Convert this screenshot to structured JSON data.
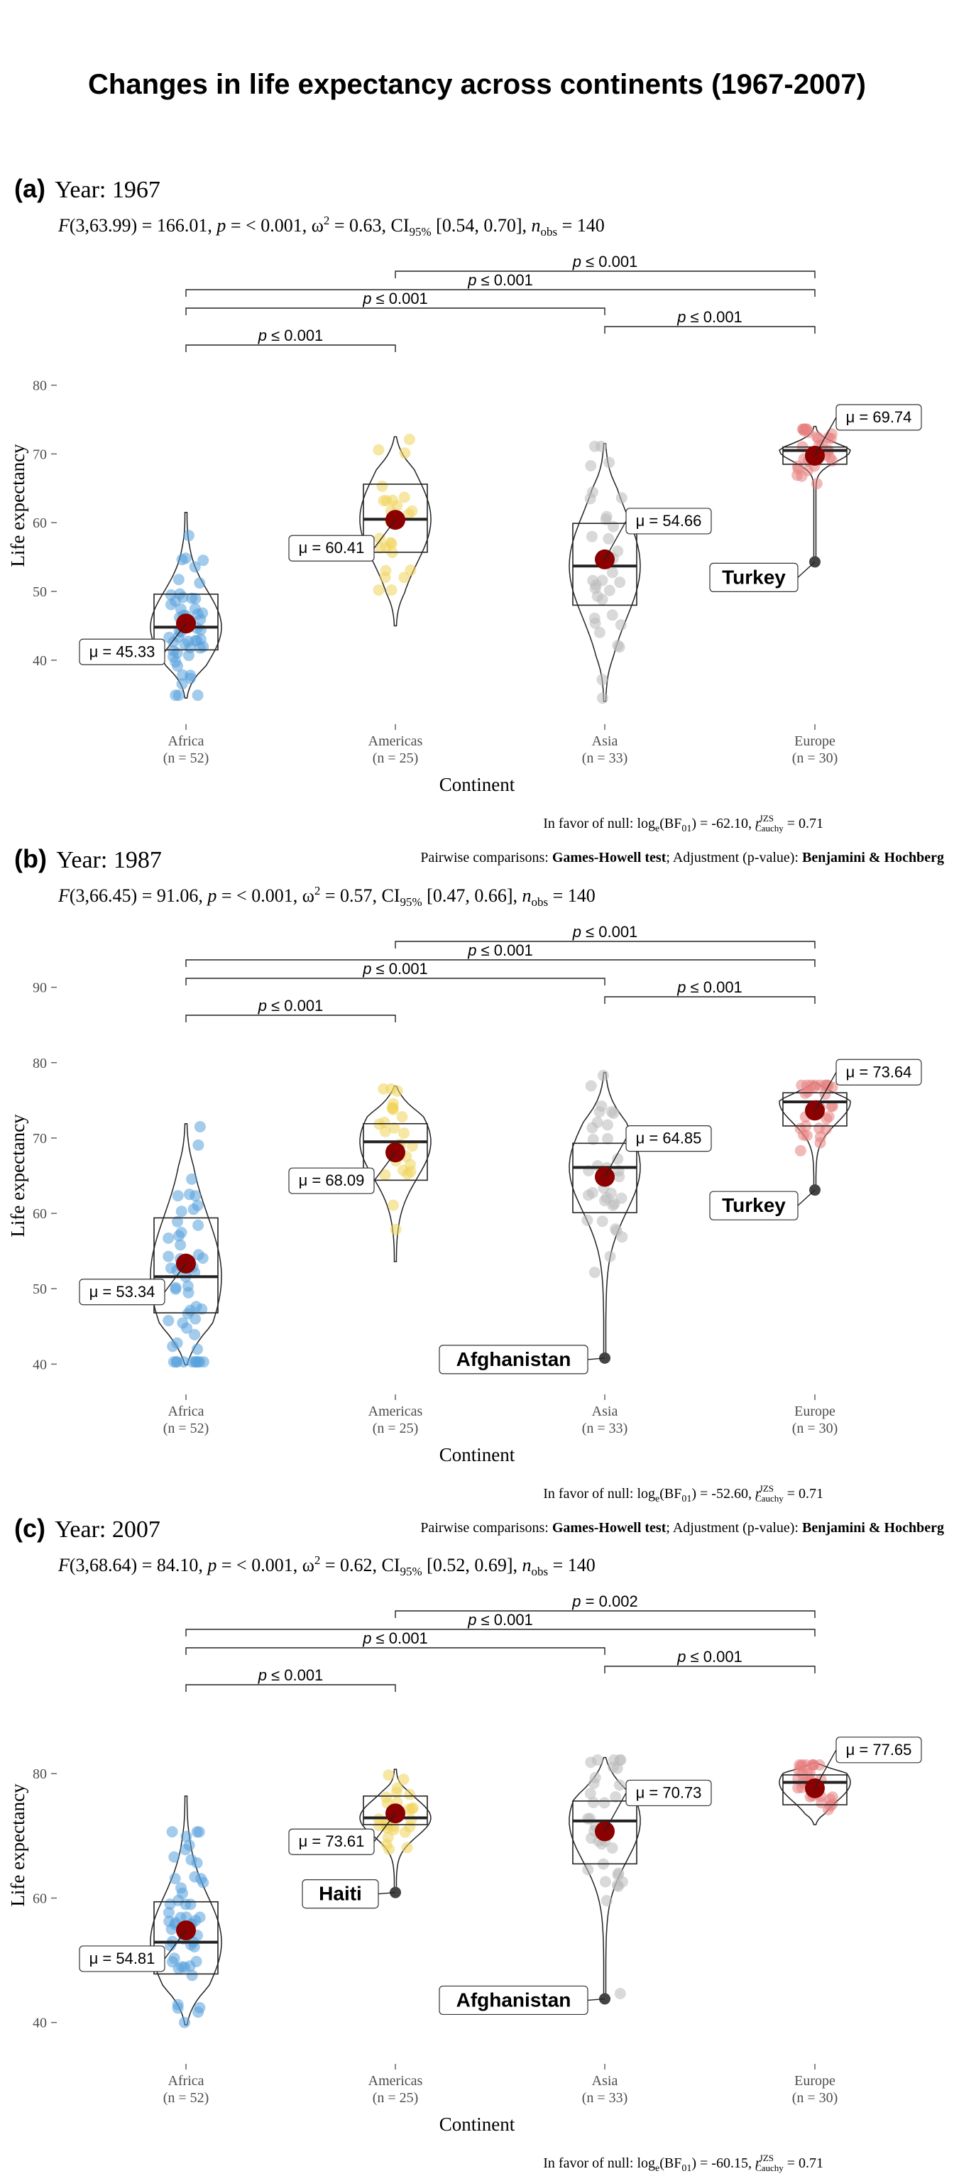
{
  "title": "Changes in life expectancy across continents (1967-2007)",
  "colors": {
    "Africa": "#56a0dc",
    "Americas": "#f0d35a",
    "Asia": "#b9b9b9",
    "Europe": "#e87f7f",
    "mean_dot": "#8b0000",
    "outlier_dot": "#444444"
  },
  "x_axis": {
    "label": "Continent"
  },
  "y_axis": {
    "label": "Life expectancy"
  },
  "pairwise_caption": {
    "prefix": "Pairwise comparisons: ",
    "test": "Games-Howell test",
    "middle": "; Adjustment (p-value): ",
    "adjust": "Benjamini & Hochberg"
  },
  "chart_data": [
    {
      "type": "violin-box-scatter",
      "tag": "(a)",
      "subtitle": "Year: 1967",
      "stats": {
        "F": "F(3,63.99) = 166.01",
        "p": "p = < 0.001",
        "omega": "0.63",
        "ci": "[0.54, 0.70]",
        "nobs": "140"
      },
      "bayes": {
        "text": "-62.10",
        "r": "0.71"
      },
      "ylim": [
        34,
        91
      ],
      "yticks": [
        40,
        50,
        60,
        70,
        80
      ],
      "categories": [
        "Africa",
        "Americas",
        "Asia",
        "Europe"
      ],
      "n": [
        "(n = 52)",
        "(n = 25)",
        "(n = 33)",
        "(n = 30)"
      ],
      "means": [
        45.33,
        60.41,
        54.66,
        69.74
      ],
      "mean_labels": [
        "μ = 45.33",
        "μ = 60.41",
        "μ = 54.66",
        "μ = 69.74"
      ],
      "boxes": [
        [
          41.5,
          44.8,
          49.6
        ],
        [
          55.7,
          60.5,
          65.6
        ],
        [
          48.0,
          53.7,
          59.9
        ],
        [
          68.5,
          70.5,
          71.0
        ]
      ],
      "ranges": [
        [
          34.5,
          61.5
        ],
        [
          45.0,
          72.5
        ],
        [
          34.0,
          71.5
        ],
        [
          54.3,
          74.0
        ]
      ],
      "outliers": [
        {
          "group": 3,
          "y": 54.3,
          "label": "Turkey"
        }
      ],
      "comparisons": [
        {
          "a": 0,
          "b": 1,
          "label": "p ≤ 0.001"
        },
        {
          "a": 0,
          "b": 2,
          "label": "p ≤ 0.001"
        },
        {
          "a": 0,
          "b": 3,
          "label": "p ≤ 0.001"
        },
        {
          "a": 1,
          "b": 3,
          "label": "p ≤ 0.001"
        },
        {
          "a": 2,
          "b": 3,
          "label": "p ≤ 0.001"
        }
      ]
    },
    {
      "type": "violin-box-scatter",
      "tag": "(b)",
      "subtitle": "Year: 1987",
      "stats": {
        "F": "F(3,66.45) = 91.06",
        "p": "p = < 0.001",
        "omega": "0.57",
        "ci": "[0.47, 0.66]",
        "nobs": "140"
      },
      "bayes": {
        "text": "-52.60",
        "r": "0.71"
      },
      "ylim": [
        39,
        91
      ],
      "yticks": [
        40,
        50,
        60,
        70,
        80,
        90
      ],
      "categories": [
        "Africa",
        "Americas",
        "Asia",
        "Europe"
      ],
      "n": [
        "(n = 52)",
        "(n = 25)",
        "(n = 33)",
        "(n = 30)"
      ],
      "means": [
        53.34,
        68.09,
        64.85,
        73.64
      ],
      "mean_labels": [
        "μ = 53.34",
        "μ = 68.09",
        "μ = 64.85",
        "μ = 73.64"
      ],
      "boxes": [
        [
          46.8,
          51.6,
          59.4
        ],
        [
          64.4,
          69.5,
          71.9
        ],
        [
          60.1,
          66.1,
          69.3
        ],
        [
          71.6,
          74.8,
          76.0
        ]
      ],
      "ranges": [
        [
          39.9,
          71.9
        ],
        [
          53.6,
          76.9
        ],
        [
          40.8,
          78.7
        ],
        [
          63.1,
          77.4
        ]
      ],
      "outliers": [
        {
          "group": 2,
          "y": 40.8,
          "label": "Afghanistan"
        },
        {
          "group": 3,
          "y": 63.1,
          "label": "Turkey"
        }
      ],
      "comparisons": [
        {
          "a": 0,
          "b": 1,
          "label": "p ≤ 0.001"
        },
        {
          "a": 0,
          "b": 2,
          "label": "p ≤ 0.001"
        },
        {
          "a": 0,
          "b": 3,
          "label": "p ≤ 0.001"
        },
        {
          "a": 1,
          "b": 3,
          "label": "p ≤ 0.001"
        },
        {
          "a": 2,
          "b": 3,
          "label": "p ≤ 0.001"
        }
      ]
    },
    {
      "type": "violin-box-scatter",
      "tag": "(c)",
      "subtitle": "Year: 2007",
      "stats": {
        "F": "F(3,68.64) = 84.10",
        "p": "p = < 0.001",
        "omega": "0.62",
        "ci": "[0.52, 0.69]",
        "nobs": "140"
      },
      "bayes": {
        "text": "-60.15",
        "r": "0.71"
      },
      "ylim": [
        37,
        100
      ],
      "yticks": [
        40,
        60,
        80
      ],
      "categories": [
        "Africa",
        "Americas",
        "Asia",
        "Europe"
      ],
      "n": [
        "(n = 52)",
        "(n = 25)",
        "(n = 33)",
        "(n = 30)"
      ],
      "means": [
        54.81,
        73.61,
        70.73,
        77.65
      ],
      "mean_labels": [
        "μ = 54.81",
        "μ = 73.61",
        "μ = 70.73",
        "μ = 77.65"
      ],
      "boxes": [
        [
          47.8,
          52.9,
          59.4
        ],
        [
          71.8,
          72.9,
          76.4
        ],
        [
          65.5,
          72.4,
          75.6
        ],
        [
          75.0,
          78.6,
          79.8
        ]
      ],
      "ranges": [
        [
          39.6,
          76.4
        ],
        [
          60.9,
          80.7
        ],
        [
          43.8,
          82.6
        ],
        [
          71.8,
          81.8
        ]
      ],
      "outliers": [
        {
          "group": 1,
          "y": 60.9,
          "label": "Haiti"
        },
        {
          "group": 2,
          "y": 43.8,
          "label": "Afghanistan"
        }
      ],
      "comparisons": [
        {
          "a": 0,
          "b": 1,
          "label": "p ≤ 0.001"
        },
        {
          "a": 0,
          "b": 2,
          "label": "p ≤ 0.001"
        },
        {
          "a": 0,
          "b": 3,
          "label": "p ≤ 0.001"
        },
        {
          "a": 1,
          "b": 3,
          "label": "p = 0.002"
        },
        {
          "a": 2,
          "b": 3,
          "label": "p ≤ 0.001"
        }
      ]
    }
  ]
}
